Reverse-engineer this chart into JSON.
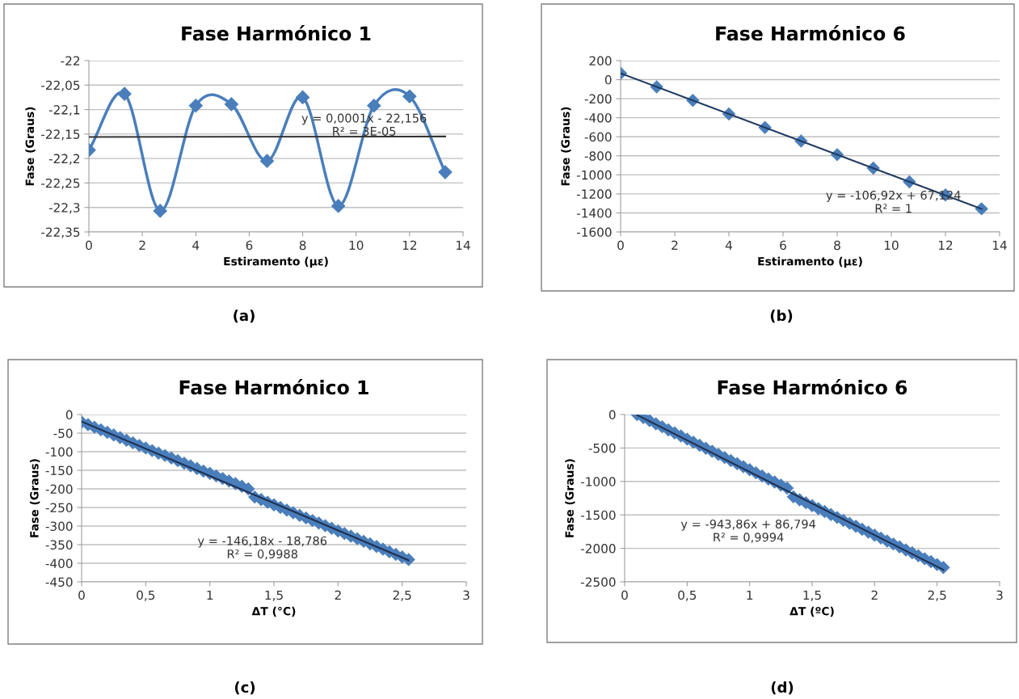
{
  "chart_data": [
    {
      "type": "line",
      "title": "Fase Harmónico 1",
      "xlabel": "Estiramento (με)",
      "ylabel": "Fase (Graus)",
      "xlim": [
        0,
        14
      ],
      "xticks": [
        0,
        2,
        4,
        6,
        8,
        10,
        12,
        14
      ],
      "ylim": [
        -22.35,
        -22
      ],
      "yticks": [
        {
          "value": -22.35,
          "label": "-22,35"
        },
        {
          "value": -22.3,
          "label": "-22,3"
        },
        {
          "value": -22.25,
          "label": "-22,25"
        },
        {
          "value": -22.2,
          "label": "-22,2"
        },
        {
          "value": -22.15,
          "label": "-22,15"
        },
        {
          "value": -22.1,
          "label": "-22,1"
        },
        {
          "value": -22.05,
          "label": "-22,05"
        },
        {
          "value": -22,
          "label": "-22"
        }
      ],
      "grid": "y",
      "series": [
        {
          "marker": "diamond",
          "color": "#4a7ebb",
          "x": [
            0,
            1.333,
            2.667,
            4,
            5.333,
            6.667,
            8,
            9.333,
            10.667,
            12,
            13.333
          ],
          "values": [
            -22.183,
            -22.068,
            -22.307,
            -22.092,
            -22.089,
            -22.205,
            -22.075,
            -22.297,
            -22.092,
            -22.073,
            -22.228
          ]
        },
        {
          "type": "line",
          "marker": "none",
          "color": "#333333",
          "x": [
            0,
            13.333
          ],
          "values": [
            -22.156,
            -22.155
          ]
        }
      ],
      "annotations": [
        {
          "text": "y = 0,0001x - 22,156\nR² = 3E-05",
          "x": 10.3,
          "y": -22.133
        },
        "(a)"
      ]
    },
    {
      "type": "scatter",
      "title": "Fase Harmónico 6",
      "xlabel": "Estiramento (με)",
      "ylabel": "Fase (Graus)",
      "xlim": [
        0,
        14
      ],
      "xticks": [
        0,
        2,
        4,
        6,
        8,
        10,
        12,
        14
      ],
      "ylim": [
        -1600,
        200
      ],
      "yticks": [
        -1600,
        -1400,
        -1200,
        -1000,
        -800,
        -600,
        -400,
        -200,
        0,
        200
      ],
      "grid": "y",
      "series": [
        {
          "marker": "diamond",
          "color": "#4a7ebb",
          "x": [
            0,
            1.333,
            2.667,
            4,
            5.333,
            6.667,
            8,
            9.333,
            10.667,
            12,
            13.333
          ],
          "values": [
            67,
            -76,
            -218,
            -361,
            -503,
            -645,
            -788,
            -930,
            -1073,
            -1212,
            -1357
          ]
        },
        {
          "type": "line",
          "marker": "none",
          "color": "#1f3a60",
          "x": [
            0,
            13.333
          ],
          "values": [
            67,
            -1358
          ]
        }
      ],
      "annotations": [
        "y = -106,92x + 67,124\nR² = 1",
        "(b)"
      ]
    },
    {
      "type": "scatter",
      "title": "Fase Harmónico 1",
      "xlabel": "ΔT (°C)",
      "ylabel": "Fase (Graus)",
      "xlim": [
        0,
        3
      ],
      "xticks": [
        0,
        {
          "value": 0.5,
          "label": "0,5"
        },
        1,
        {
          "value": 1.5,
          "label": "1,5"
        },
        2,
        {
          "value": 2.5,
          "label": "2,5"
        },
        3
      ],
      "ylim": [
        -450,
        0
      ],
      "yticks": [
        -450,
        -400,
        -350,
        -300,
        -250,
        -200,
        -150,
        -100,
        -50,
        0
      ],
      "grid": "y",
      "series": [
        {
          "marker": "diamond",
          "color": "#4a7ebb",
          "x": [
            0,
            0.05,
            0.1,
            0.15,
            0.2,
            0.25,
            0.3,
            0.35,
            0.4,
            0.45,
            0.5,
            0.55,
            0.6,
            0.65,
            0.7,
            0.75,
            0.8,
            0.85,
            0.9,
            0.95,
            1.0,
            1.05,
            1.1,
            1.15,
            1.2,
            1.25,
            1.3,
            1.35,
            1.4,
            1.45,
            1.5,
            1.55,
            1.6,
            1.65,
            1.7,
            1.75,
            1.8,
            1.85,
            1.9,
            1.95,
            2.0,
            2.05,
            2.1,
            2.15,
            2.2,
            2.25,
            2.3,
            2.35,
            2.4,
            2.45,
            2.5,
            2.55
          ],
          "values": [
            -20,
            -27,
            -34,
            -41,
            -48,
            -55,
            -62,
            -69,
            -76,
            -83,
            -90,
            -97,
            -104,
            -110,
            -117,
            -124,
            -131,
            -138,
            -145,
            -152,
            -158,
            -165,
            -172,
            -179,
            -186,
            -193,
            -200,
            -222,
            -229,
            -236,
            -243,
            -250,
            -257,
            -264,
            -271,
            -278,
            -285,
            -292,
            -299,
            -306,
            -313,
            -320,
            -327,
            -334,
            -341,
            -348,
            -355,
            -362,
            -369,
            -376,
            -383,
            -390
          ]
        },
        {
          "type": "line",
          "marker": "none",
          "color": "#1f2f4f",
          "x": [
            0,
            2.55
          ],
          "values": [
            -19,
            -392
          ]
        }
      ],
      "annotations": [
        "y = -146,18x - 18,786\nR² = 0,9988",
        "(c)"
      ]
    },
    {
      "type": "scatter",
      "title": "Fase Harmónico 6",
      "xlabel": "ΔT (ºC)",
      "ylabel": "Fase (Graus)",
      "xlim": [
        0,
        3
      ],
      "xticks": [
        0,
        {
          "value": 0.5,
          "label": "0,5"
        },
        1,
        {
          "value": 1.5,
          "label": "1,5"
        },
        2,
        {
          "value": 2.5,
          "label": "2,5"
        },
        3
      ],
      "ylim": [
        -2500,
        0
      ],
      "yticks": [
        -2500,
        -2000,
        -1500,
        -1000,
        -500,
        0
      ],
      "grid": "y",
      "series": [
        {
          "marker": "diamond",
          "color": "#4a7ebb",
          "x": [
            0.1,
            0.15,
            0.2,
            0.25,
            0.3,
            0.35,
            0.4,
            0.45,
            0.5,
            0.55,
            0.6,
            0.65,
            0.7,
            0.75,
            0.8,
            0.85,
            0.9,
            0.95,
            1.0,
            1.05,
            1.1,
            1.15,
            1.2,
            1.25,
            1.3,
            1.35,
            1.4,
            1.45,
            1.5,
            1.55,
            1.6,
            1.65,
            1.7,
            1.75,
            1.8,
            1.85,
            1.9,
            1.95,
            2.0,
            2.05,
            2.1,
            2.15,
            2.2,
            2.25,
            2.3,
            2.35,
            2.4,
            2.45,
            2.5,
            2.55
          ],
          "values": [
            0,
            -46,
            -92,
            -138,
            -183,
            -229,
            -275,
            -321,
            -367,
            -413,
            -458,
            -504,
            -550,
            -596,
            -642,
            -688,
            -733,
            -779,
            -825,
            -871,
            -917,
            -963,
            -1008,
            -1054,
            -1100,
            -1230,
            -1274,
            -1318,
            -1362,
            -1406,
            -1450,
            -1494,
            -1538,
            -1582,
            -1626,
            -1670,
            -1714,
            -1758,
            -1802,
            -1846,
            -1890,
            -1934,
            -1978,
            -2022,
            -2066,
            -2110,
            -2154,
            -2198,
            -2242,
            -2286
          ]
        },
        {
          "type": "line",
          "marker": "none",
          "color": "#1f2f4f",
          "x": [
            0.1,
            2.55
          ],
          "values": [
            -8,
            -2320
          ]
        }
      ],
      "annotations": [
        "y = -943,86x + 86,794\nR² = 0,9994",
        "(d)"
      ]
    }
  ]
}
